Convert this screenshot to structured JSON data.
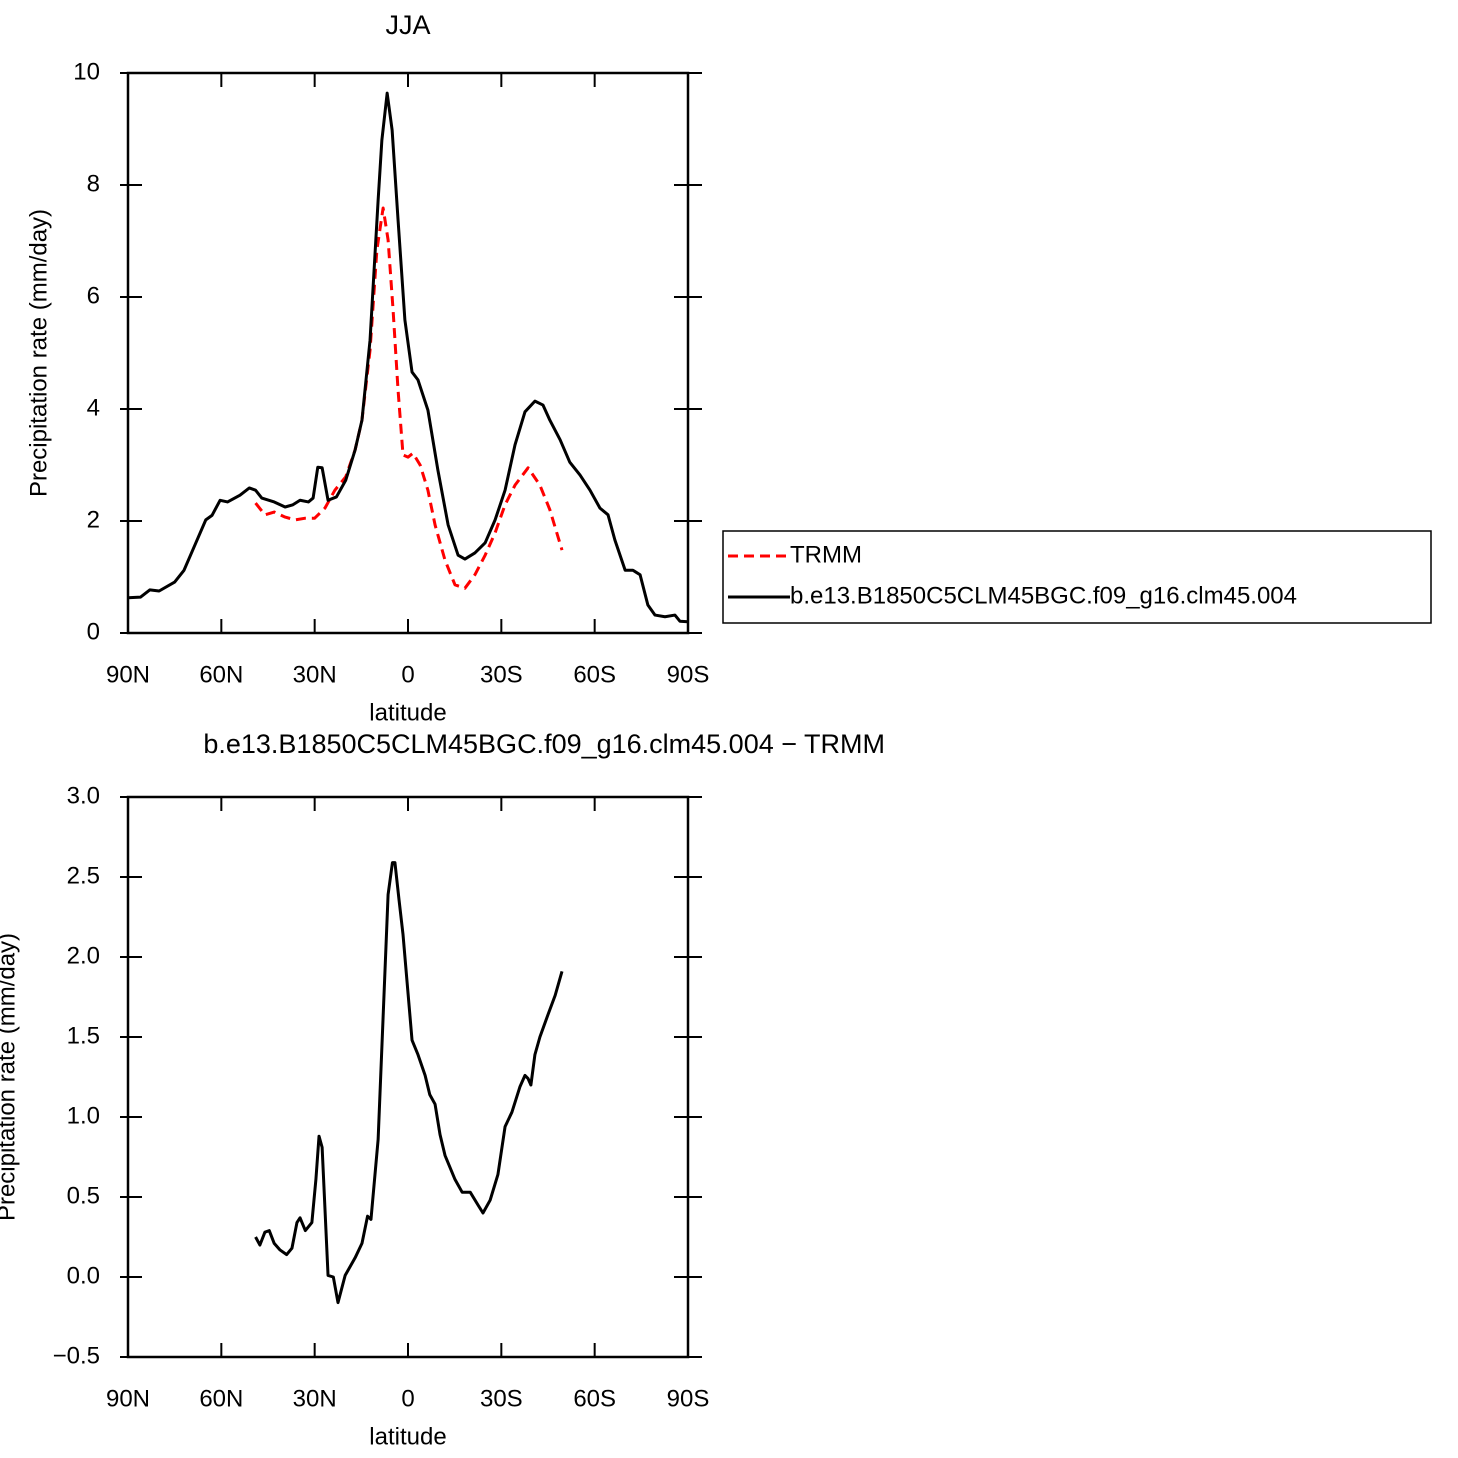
{
  "chart_data": [
    {
      "type": "line",
      "title": "JJA",
      "xlabel": "latitude",
      "ylabel": "Precipitation rate (mm/day)",
      "xlim": [
        90,
        -90
      ],
      "xticks": [
        {
          "value": 90,
          "label": "90N"
        },
        {
          "value": 60,
          "label": "60N"
        },
        {
          "value": 30,
          "label": "30N"
        },
        0,
        {
          "value": -30,
          "label": "30S"
        },
        {
          "value": -60,
          "label": "60S"
        },
        {
          "value": -90,
          "label": "90S"
        }
      ],
      "ylim": [
        0,
        10
      ],
      "yticks": [
        0,
        2,
        4,
        6,
        8,
        10
      ],
      "legend": "right",
      "series": [
        {
          "name": "TRMM",
          "color": "#ff0000",
          "style": "dashed",
          "x": [
            49,
            46,
            43,
            39.5,
            36.3,
            33,
            30,
            26.7,
            23.5,
            20,
            17,
            14.8,
            12.2,
            10,
            8,
            6.4,
            4.8,
            3.2,
            1.6,
            0,
            -1.6,
            -3.9,
            -6.4,
            -8.7,
            -11.9,
            -15.1,
            -18.3,
            -21.5,
            -24.8,
            -28,
            -31.2,
            -34.4,
            -38.6,
            -42.4,
            -45.6,
            -49.5
          ],
          "values": [
            2.32,
            2.11,
            2.16,
            2.07,
            2.02,
            2.05,
            2.05,
            2.23,
            2.55,
            2.79,
            3.27,
            3.8,
            5.05,
            6.84,
            7.59,
            7.02,
            5.77,
            4.34,
            3.18,
            3.14,
            3.21,
            3.0,
            2.55,
            1.93,
            1.3,
            0.86,
            0.8,
            1.04,
            1.39,
            1.79,
            2.29,
            2.64,
            2.95,
            2.64,
            2.2,
            1.48
          ]
        },
        {
          "name": "b.e13.B1850C5CLM45BGC.f09_g16.clm45.004",
          "color": "#000000",
          "style": "solid",
          "x": [
            90,
            86,
            83,
            80,
            75,
            72,
            68.5,
            65,
            63,
            60.4,
            58,
            54,
            51,
            49,
            47,
            43,
            39.5,
            37,
            34.7,
            32,
            30.5,
            29,
            27.6,
            25.7,
            23,
            20,
            17,
            14.8,
            12.2,
            9.6,
            8.4,
            6.7,
            5.1,
            3.2,
            1,
            -1.3,
            -3.2,
            -6.4,
            -9.6,
            -12.9,
            -16.1,
            -18.3,
            -21.5,
            -24.8,
            -28,
            -31.2,
            -34.4,
            -37.6,
            -40.8,
            -43.4,
            -45.6,
            -48.9,
            -52,
            -55.3,
            -58.5,
            -61.7,
            -64.3,
            -66.5,
            -69.8,
            -72.3,
            -74.6,
            -77.1,
            -79.4,
            -82.6,
            -85.8,
            -87.4,
            -90
          ],
          "values": [
            0.63,
            0.64,
            0.77,
            0.75,
            0.91,
            1.12,
            1.57,
            2.02,
            2.1,
            2.37,
            2.34,
            2.46,
            2.59,
            2.55,
            2.41,
            2.34,
            2.25,
            2.29,
            2.37,
            2.34,
            2.41,
            2.96,
            2.95,
            2.37,
            2.43,
            2.73,
            3.27,
            3.8,
            5.23,
            7.73,
            8.8,
            9.64,
            8.98,
            7.38,
            5.59,
            4.66,
            4.52,
            3.98,
            2.91,
            1.93,
            1.39,
            1.32,
            1.43,
            1.61,
            2.02,
            2.55,
            3.36,
            3.95,
            4.14,
            4.07,
            3.8,
            3.45,
            3.05,
            2.82,
            2.55,
            2.23,
            2.11,
            1.66,
            1.12,
            1.12,
            1.04,
            0.5,
            0.32,
            0.29,
            0.32,
            0.21,
            0.2
          ]
        }
      ]
    },
    {
      "type": "line",
      "title": "b.e13.B1850C5CLM45BGC.f09_g16.clm45.004 − TRMM",
      "xlabel": "latitude",
      "ylabel": "Precipitation rate (mm/day)",
      "xlim": [
        90,
        -90
      ],
      "xticks": [
        {
          "value": 90,
          "label": "90N"
        },
        {
          "value": 60,
          "label": "60N"
        },
        {
          "value": 30,
          "label": "30N"
        },
        0,
        {
          "value": -30,
          "label": "30S"
        },
        {
          "value": -60,
          "label": "60S"
        },
        {
          "value": -90,
          "label": "90S"
        }
      ],
      "ylim": [
        -0.5,
        3.0
      ],
      "yticks": [
        {
          "value": -0.5,
          "label": "−0.5"
        },
        {
          "value": 0,
          "label": "0.0"
        },
        {
          "value": 0.5,
          "label": "0.5"
        },
        {
          "value": 1,
          "label": "1.0"
        },
        {
          "value": 1.5,
          "label": "1.5"
        },
        {
          "value": 2,
          "label": "2.0"
        },
        {
          "value": 2.5,
          "label": "2.5"
        },
        {
          "value": 3,
          "label": "3.0"
        }
      ],
      "series": [
        {
          "color": "#000000",
          "style": "solid",
          "x": [
            49,
            47.6,
            46,
            44.6,
            43,
            41.2,
            39,
            37.3,
            35.7,
            34.7,
            33,
            30.9,
            29.6,
            28.6,
            27.6,
            25.7,
            24,
            22.5,
            20.2,
            17,
            14.8,
            13,
            11.9,
            9.6,
            6.4,
            5,
            4.2,
            2.9,
            1.6,
            -1.3,
            -3.2,
            -5.5,
            -7,
            -8.7,
            -10.3,
            -11.9,
            -15.1,
            -17.4,
            -20,
            -22.5,
            -24.1,
            -26.4,
            -28.9,
            -31.2,
            -33.4,
            -36,
            -37.6,
            -38.6,
            -39.5,
            -40.8,
            -42.4,
            -45,
            -47.3,
            -49.5
          ],
          "values": [
            0.25,
            0.2,
            0.28,
            0.29,
            0.21,
            0.17,
            0.14,
            0.18,
            0.34,
            0.37,
            0.29,
            0.34,
            0.61,
            0.88,
            0.81,
            0.01,
            0.0,
            -0.16,
            0.01,
            0.12,
            0.21,
            0.38,
            0.36,
            0.86,
            2.39,
            2.59,
            2.59,
            2.36,
            2.14,
            1.48,
            1.39,
            1.26,
            1.14,
            1.08,
            0.89,
            0.76,
            0.61,
            0.53,
            0.53,
            0.45,
            0.4,
            0.48,
            0.64,
            0.94,
            1.03,
            1.19,
            1.26,
            1.24,
            1.2,
            1.39,
            1.5,
            1.64,
            1.76,
            1.91
          ]
        }
      ]
    }
  ]
}
